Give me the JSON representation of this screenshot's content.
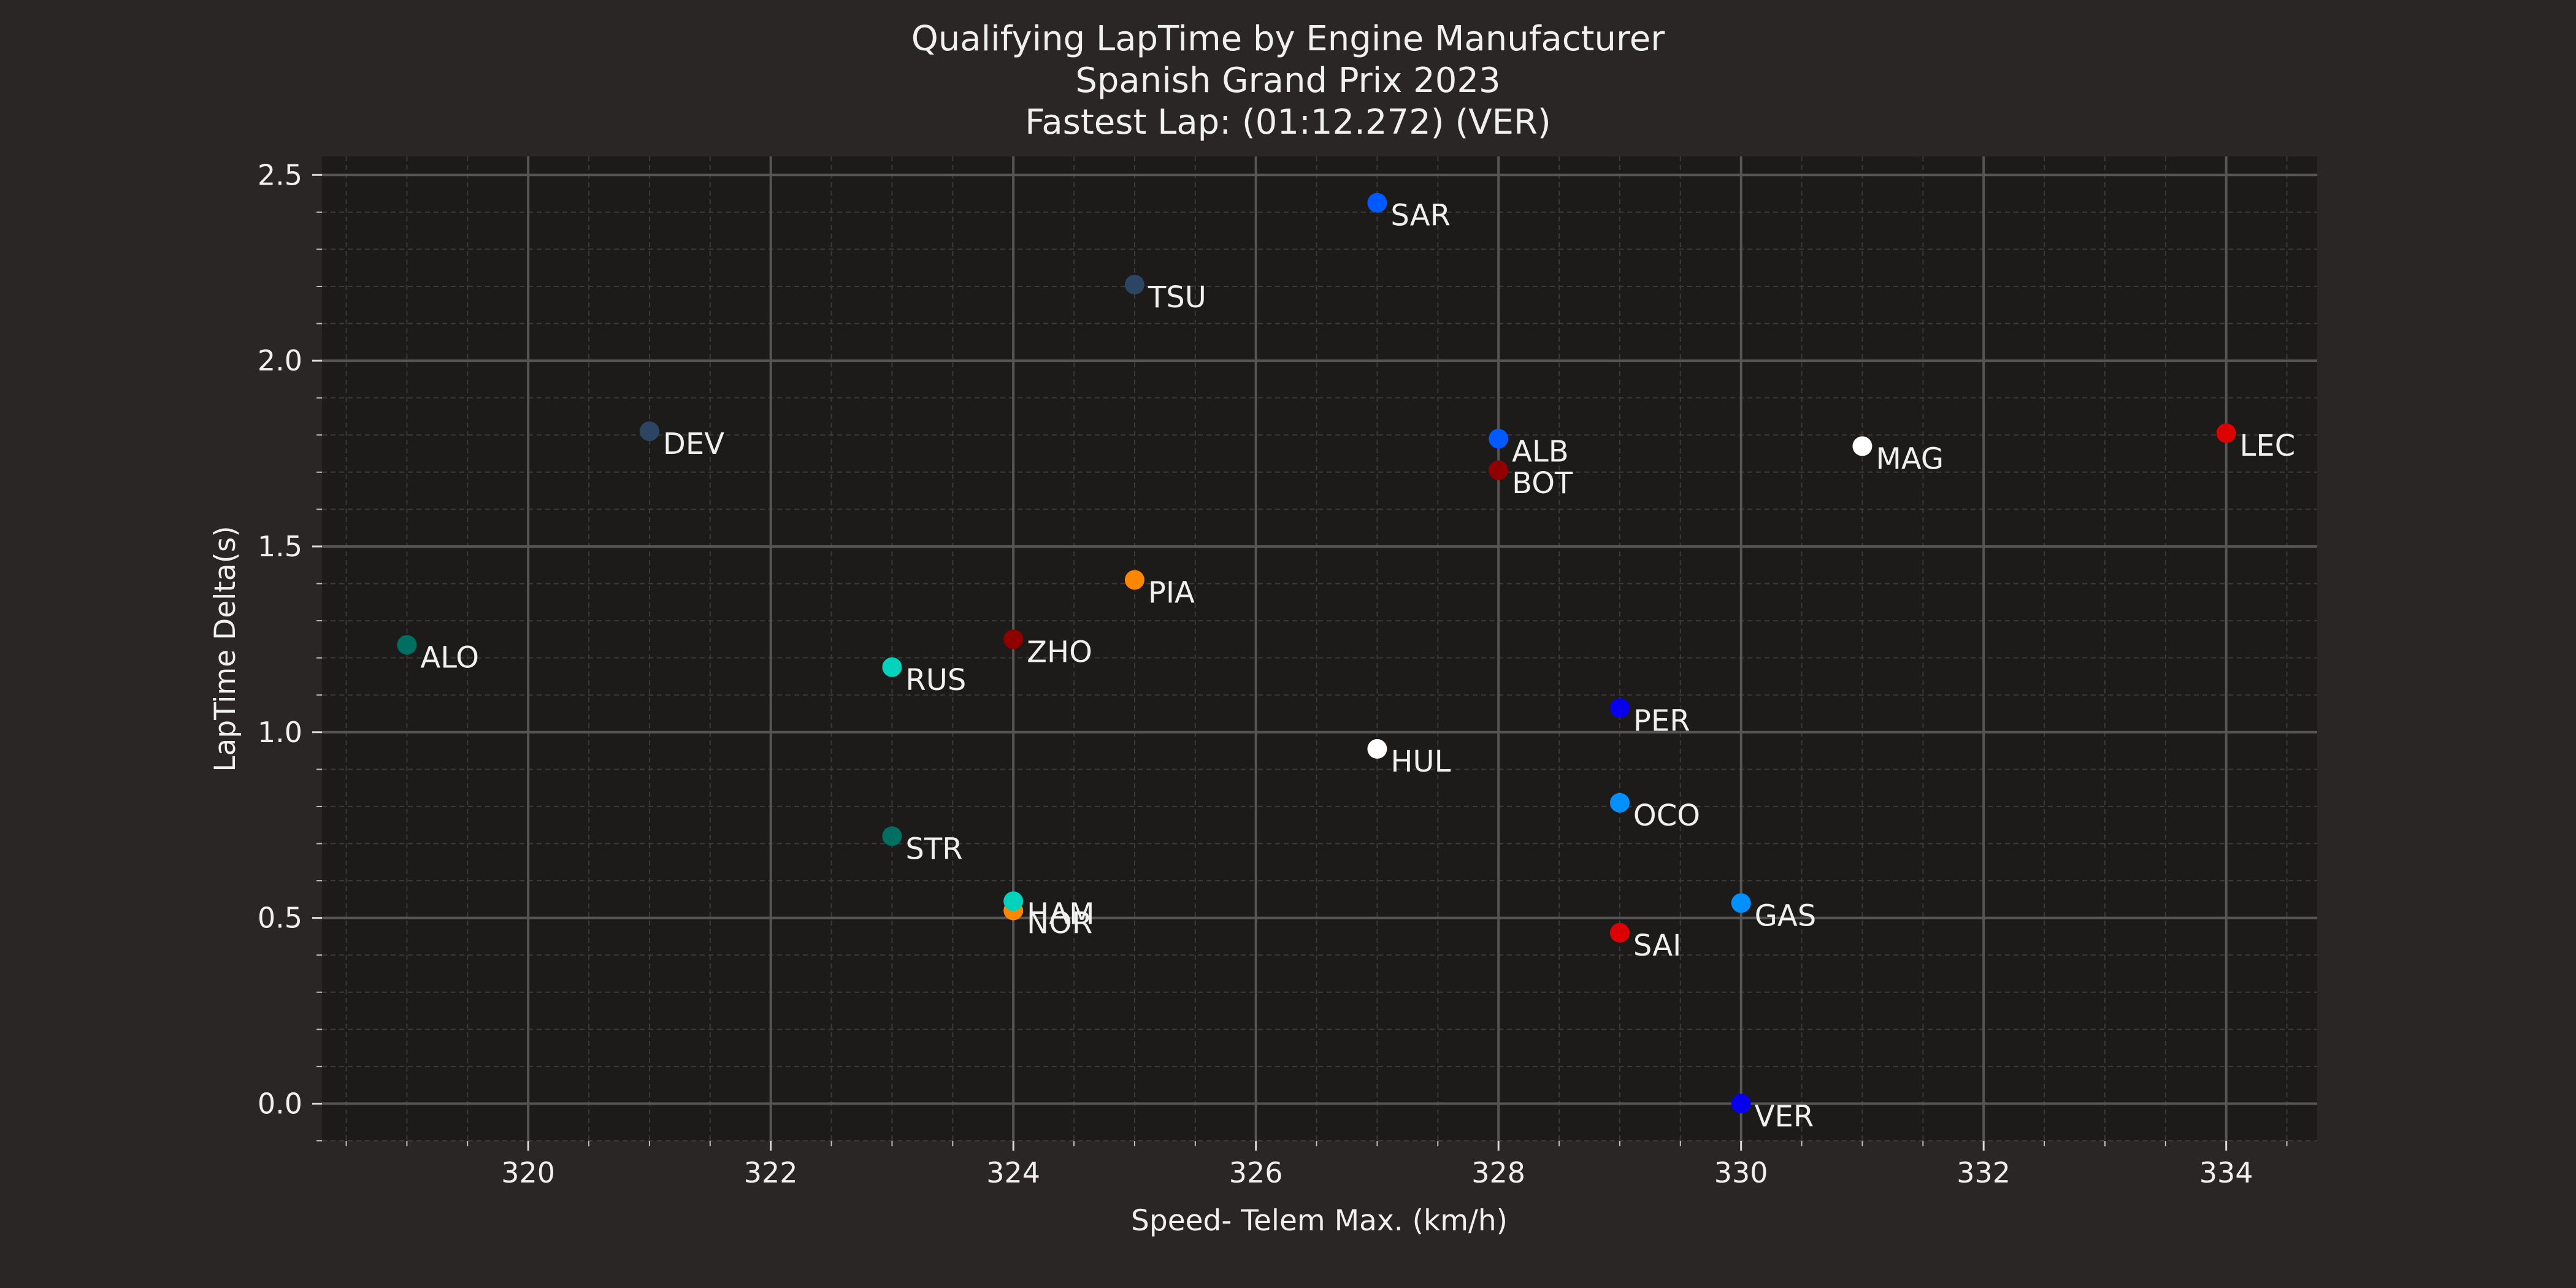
{
  "chart_data": {
    "type": "scatter",
    "title_lines": [
      "Qualifying LapTime by Engine Manufacturer",
      "Spanish Grand Prix 2023",
      "Fastest Lap: (01:12.272) (VER)"
    ],
    "xlabel": "Speed- Telem Max. (km/h)",
    "ylabel": "LapTime Delta(s)",
    "xlim": [
      318.3,
      334.75
    ],
    "ylim": [
      -0.1,
      2.55
    ],
    "x_ticks": [
      "320",
      "322",
      "324",
      "326",
      "328",
      "330",
      "332",
      "334"
    ],
    "x_tick_values": [
      320,
      322,
      324,
      326,
      328,
      330,
      332,
      334
    ],
    "y_ticks": [
      "0.0",
      "0.5",
      "1.0",
      "1.5",
      "2.0",
      "2.5"
    ],
    "y_tick_values": [
      0,
      0.5,
      1.0,
      1.5,
      2.0,
      2.5
    ],
    "grid": true,
    "colors": {
      "figure_background": "#292625",
      "plot_background": "#1c1b1a",
      "major_grid": "#565454",
      "minor_grid": "#3c3a39",
      "text": "#f0f0f0"
    },
    "points": [
      {
        "label": "VER",
        "x": 330,
        "y": 0.0,
        "color": "#0600ef"
      },
      {
        "label": "SAI",
        "x": 329,
        "y": 0.46,
        "color": "#dc0000"
      },
      {
        "label": "NOR",
        "x": 324,
        "y": 0.52,
        "color": "#ff8700"
      },
      {
        "label": "GAS",
        "x": 330,
        "y": 0.54,
        "color": "#0090ff"
      },
      {
        "label": "HAM",
        "x": 324,
        "y": 0.545,
        "color": "#00d2be"
      },
      {
        "label": "STR",
        "x": 323,
        "y": 0.72,
        "color": "#006f62"
      },
      {
        "label": "OCO",
        "x": 329,
        "y": 0.81,
        "color": "#0090ff"
      },
      {
        "label": "HUL",
        "x": 327,
        "y": 0.955,
        "color": "#ffffff"
      },
      {
        "label": "PER",
        "x": 329,
        "y": 1.065,
        "color": "#0600ef"
      },
      {
        "label": "RUS",
        "x": 323,
        "y": 1.175,
        "color": "#00d2be"
      },
      {
        "label": "ALO",
        "x": 319,
        "y": 1.235,
        "color": "#006f62"
      },
      {
        "label": "ZHO",
        "x": 324,
        "y": 1.25,
        "color": "#900000"
      },
      {
        "label": "PIA",
        "x": 325,
        "y": 1.41,
        "color": "#ff8700"
      },
      {
        "label": "BOT",
        "x": 328,
        "y": 1.705,
        "color": "#900000"
      },
      {
        "label": "MAG",
        "x": 331,
        "y": 1.77,
        "color": "#ffffff"
      },
      {
        "label": "ALB",
        "x": 328,
        "y": 1.79,
        "color": "#005aff"
      },
      {
        "label": "LEC",
        "x": 334,
        "y": 1.805,
        "color": "#dc0000"
      },
      {
        "label": "DEV",
        "x": 321,
        "y": 1.81,
        "color": "#2b4562"
      },
      {
        "label": "TSU",
        "x": 325,
        "y": 2.205,
        "color": "#2b4562"
      },
      {
        "label": "SAR",
        "x": 327,
        "y": 2.425,
        "color": "#005aff"
      }
    ]
  }
}
